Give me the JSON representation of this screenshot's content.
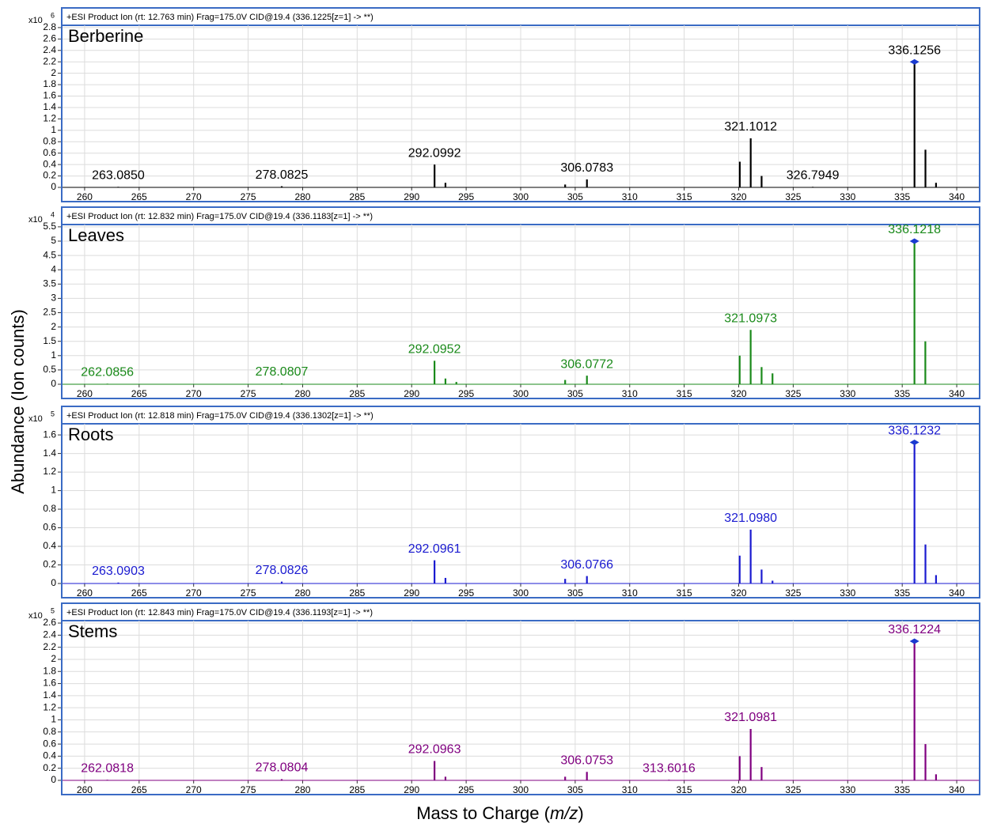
{
  "ylabel": "Abundance (Ion counts)",
  "xlabel": {
    "start": "Mass to Charge (",
    "italic": "m/z",
    "end": ")"
  },
  "chart_data": [
    {
      "type": "bar",
      "title": "+ESI Product Ion (rt: 12.763 min) Frag=175.0V CID@19.4 (336.1225[z=1] -> **)",
      "name": "Berberine",
      "color": "#000000",
      "scale": {
        "base": "x10",
        "exponent": 6
      },
      "x": [
        263.085,
        278.0825,
        292.0992,
        293.1,
        304.08,
        306.0783,
        320.1,
        321.1012,
        322.1,
        326.7949,
        336.1256,
        337.13,
        338.1
      ],
      "values": [
        0.01,
        0.02,
        0.4,
        0.08,
        0.05,
        0.14,
        0.45,
        0.86,
        0.2,
        0.01,
        2.2,
        0.66,
        0.08
      ],
      "peak_labels": [
        {
          "value": 263.085,
          "label": "263.0850"
        },
        {
          "value": 278.0825,
          "label": "278.0825"
        },
        {
          "value": 292.0992,
          "label": "292.0992"
        },
        {
          "value": 306.0783,
          "label": "306.0783"
        },
        {
          "value": 321.1012,
          "label": "321.1012"
        },
        {
          "value": 326.7949,
          "label": "326.7949"
        },
        {
          "value": 336.1256,
          "label": "336.1256"
        }
      ],
      "xlim": [
        257.9,
        342.1
      ],
      "xticks": [
        260,
        265,
        270,
        275,
        280,
        285,
        290,
        295,
        300,
        305,
        310,
        315,
        320,
        325,
        330,
        335,
        340
      ],
      "ylim": [
        0,
        2.84
      ],
      "yticks": [
        0,
        0.2,
        0.4,
        0.6,
        0.8,
        1,
        1.2,
        1.4,
        1.6,
        1.8,
        2,
        2.2,
        2.4,
        2.6,
        2.8
      ],
      "grid": true
    },
    {
      "type": "bar",
      "title": "+ESI Product Ion (rt: 12.832 min) Frag=175.0V CID@19.4 (336.1183[z=1] -> **)",
      "name": "Leaves",
      "color": "#1a8a1a",
      "scale": {
        "base": "x10",
        "exponent": 4
      },
      "x": [
        262.0856,
        278.0807,
        292.0952,
        293.1,
        294.1,
        304.08,
        306.0772,
        320.09,
        321.0973,
        322.1,
        323.1,
        336.1218,
        337.12
      ],
      "values": [
        0.02,
        0.03,
        0.82,
        0.2,
        0.08,
        0.15,
        0.3,
        1.0,
        1.9,
        0.6,
        0.38,
        5.0,
        1.5
      ],
      "peak_labels": [
        {
          "value": 262.0856,
          "label": "262.0856"
        },
        {
          "value": 278.0807,
          "label": "278.0807"
        },
        {
          "value": 292.0952,
          "label": "292.0952"
        },
        {
          "value": 306.0772,
          "label": "306.0772"
        },
        {
          "value": 321.0973,
          "label": "321.0973"
        },
        {
          "value": 336.1218,
          "label": "336.1218"
        }
      ],
      "xlim": [
        257.9,
        342.1
      ],
      "xticks": [
        260,
        265,
        270,
        275,
        280,
        285,
        290,
        295,
        300,
        305,
        310,
        315,
        320,
        325,
        330,
        335,
        340
      ],
      "ylim": [
        0,
        5.58
      ],
      "yticks": [
        0,
        0.5,
        1,
        1.5,
        2,
        2.5,
        3,
        3.5,
        4,
        4.5,
        5,
        5.5
      ],
      "grid": true
    },
    {
      "type": "bar",
      "title": "+ESI Product Ion (rt: 12.818 min) Frag=175.0V CID@19.4 (336.1302[z=1] -> **)",
      "name": "Roots",
      "color": "#1a1ad0",
      "scale": {
        "base": "x10",
        "exponent": 5
      },
      "x": [
        263.0903,
        278.0826,
        292.0961,
        293.1,
        304.08,
        306.0766,
        320.09,
        321.098,
        322.1,
        323.1,
        336.1232,
        337.13,
        338.1
      ],
      "values": [
        0.01,
        0.02,
        0.25,
        0.06,
        0.05,
        0.08,
        0.3,
        0.58,
        0.15,
        0.03,
        1.52,
        0.42,
        0.09
      ],
      "peak_labels": [
        {
          "value": 263.0903,
          "label": "263.0903"
        },
        {
          "value": 278.0826,
          "label": "278.0826"
        },
        {
          "value": 292.0961,
          "label": "292.0961"
        },
        {
          "value": 306.0766,
          "label": "306.0766"
        },
        {
          "value": 321.098,
          "label": "321.0980"
        },
        {
          "value": 336.1232,
          "label": "336.1232"
        }
      ],
      "xlim": [
        257.9,
        342.1
      ],
      "xticks": [
        260,
        265,
        270,
        275,
        280,
        285,
        290,
        295,
        300,
        305,
        310,
        315,
        320,
        325,
        330,
        335,
        340
      ],
      "ylim": [
        0,
        1.72
      ],
      "yticks": [
        0,
        0.2,
        0.4,
        0.6,
        0.8,
        1,
        1.2,
        1.4,
        1.6
      ],
      "grid": true
    },
    {
      "type": "bar",
      "title": "+ESI Product Ion (rt: 12.843 min) Frag=175.0V CID@19.4 (336.1193[z=1] -> **)",
      "name": "Stems",
      "color": "#800080",
      "scale": {
        "base": "x10",
        "exponent": 5
      },
      "x": [
        262.0818,
        278.0804,
        292.0963,
        293.1,
        304.08,
        306.0753,
        313.6016,
        320.09,
        321.0981,
        322.1,
        336.1224,
        337.13,
        338.1
      ],
      "values": [
        0.01,
        0.02,
        0.32,
        0.06,
        0.06,
        0.14,
        0.01,
        0.4,
        0.85,
        0.22,
        2.3,
        0.6,
        0.1
      ],
      "peak_labels": [
        {
          "value": 262.0818,
          "label": "262.0818"
        },
        {
          "value": 278.0804,
          "label": "278.0804"
        },
        {
          "value": 292.0963,
          "label": "292.0963"
        },
        {
          "value": 306.0753,
          "label": "306.0753"
        },
        {
          "value": 313.6016,
          "label": "313.6016"
        },
        {
          "value": 321.0981,
          "label": "321.0981"
        },
        {
          "value": 336.1224,
          "label": "336.1224"
        }
      ],
      "xlim": [
        257.9,
        342.1
      ],
      "xticks": [
        260,
        265,
        270,
        275,
        280,
        285,
        290,
        295,
        300,
        305,
        310,
        315,
        320,
        325,
        330,
        335,
        340
      ],
      "ylim": [
        0,
        2.64
      ],
      "yticks": [
        0,
        0.2,
        0.4,
        0.6,
        0.8,
        1,
        1.2,
        1.4,
        1.6,
        1.8,
        2,
        2.2,
        2.4,
        2.6
      ],
      "grid": true
    }
  ]
}
